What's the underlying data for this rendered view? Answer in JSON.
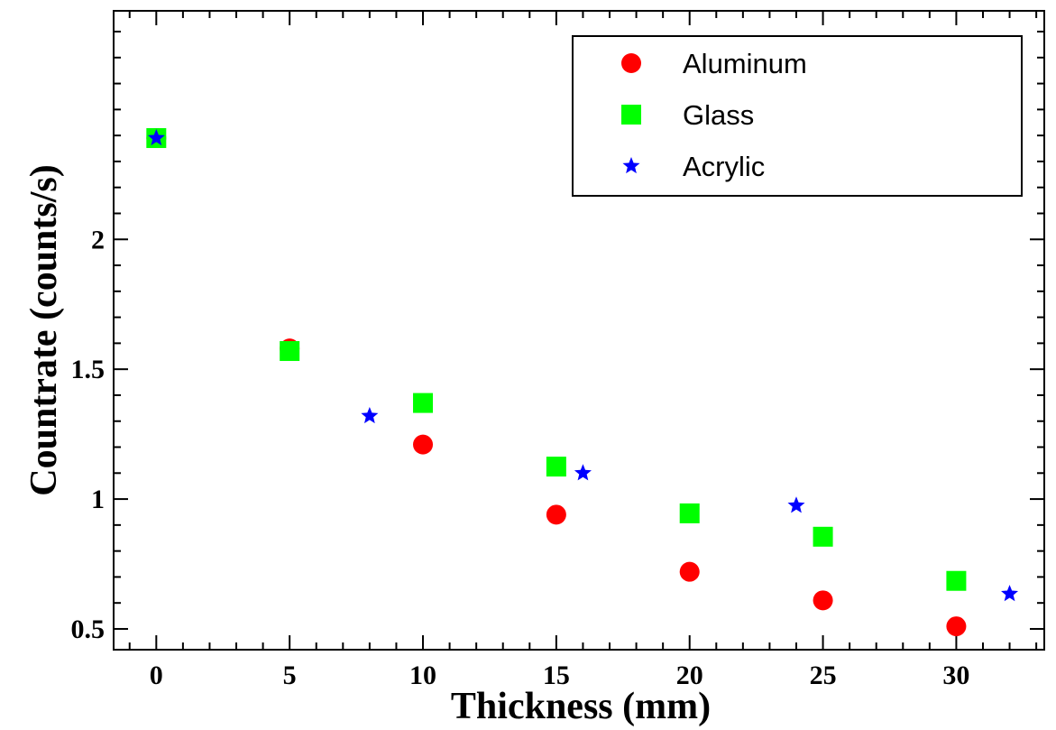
{
  "chart_data": {
    "type": "scatter",
    "xlabel": "Thickness (mm)",
    "ylabel": "Countrate (counts/s)",
    "xlim": [
      -1.6,
      33.3
    ],
    "ylim": [
      0.42,
      2.88
    ],
    "x_ticks": [
      0,
      5,
      10,
      15,
      20,
      25,
      30
    ],
    "x_tick_labels": [
      "0",
      "5",
      "10",
      "15",
      "20",
      "25",
      "30"
    ],
    "y_ticks": [
      0.5,
      1,
      1.5,
      2
    ],
    "y_tick_labels": [
      "0.5",
      "1",
      "1.5",
      "2"
    ],
    "grid": false,
    "legend_position": "top-right",
    "series": [
      {
        "name": "Aluminum",
        "marker": "circle",
        "color": "#ff0000",
        "points": [
          [
            0,
            2.39
          ],
          [
            5,
            1.58
          ],
          [
            10,
            1.21
          ],
          [
            15,
            0.94
          ],
          [
            20,
            0.72
          ],
          [
            25,
            0.61
          ],
          [
            30,
            0.51
          ]
        ]
      },
      {
        "name": "Glass",
        "marker": "square",
        "color": "#00ff00",
        "points": [
          [
            0,
            2.39
          ],
          [
            5,
            1.57
          ],
          [
            10,
            1.37
          ],
          [
            15,
            1.125
          ],
          [
            20,
            0.945
          ],
          [
            25,
            0.855
          ],
          [
            30,
            0.685
          ]
        ]
      },
      {
        "name": "Acrylic",
        "marker": "star",
        "color": "#0000ff",
        "points": [
          [
            0,
            2.39
          ],
          [
            8,
            1.32
          ],
          [
            16,
            1.1
          ],
          [
            24,
            0.975
          ],
          [
            32,
            0.635
          ]
        ]
      }
    ]
  }
}
